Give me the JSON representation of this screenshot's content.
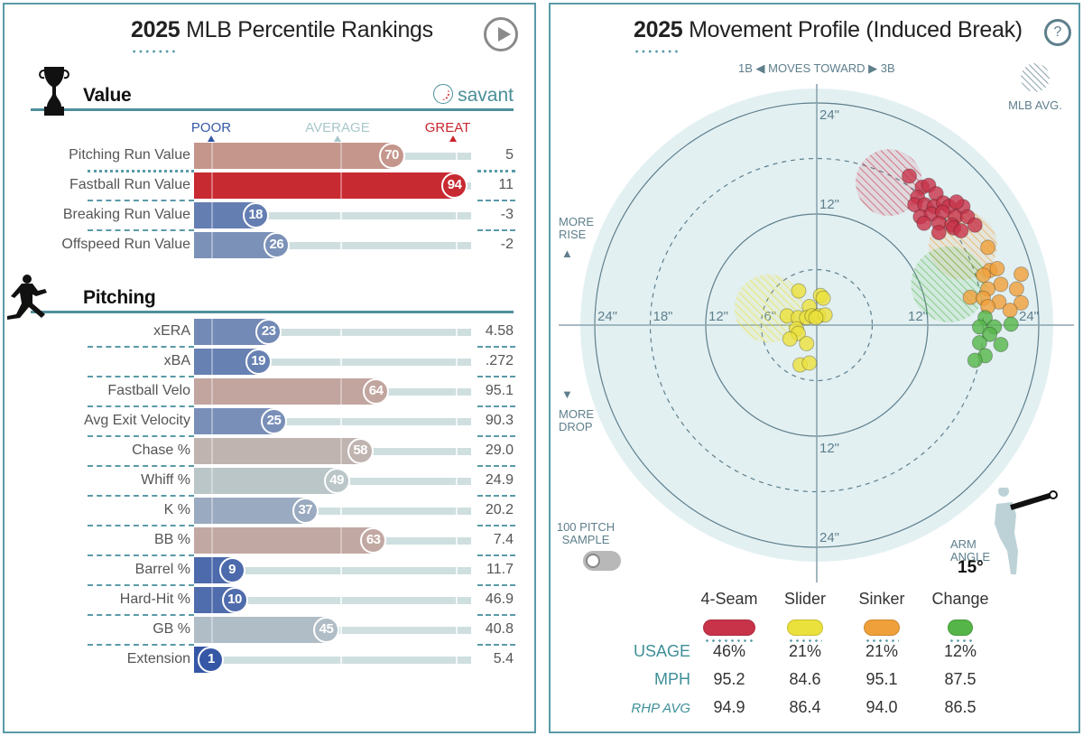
{
  "left": {
    "title_year": "2025",
    "title_rest": " MLB Percentile Rankings",
    "play_icon": "play-icon",
    "brand": "savant",
    "scale": {
      "poor": "POOR",
      "average": "AVERAGE",
      "great": "GREAT"
    },
    "sections": [
      {
        "label": "Value",
        "icon": "trophy-icon",
        "rows": [
          {
            "label": "Pitching Run Value",
            "percentile": 70,
            "value": "5"
          },
          {
            "label": "Fastball Run Value",
            "percentile": 94,
            "value": "11"
          },
          {
            "label": "Breaking Run Value",
            "percentile": 18,
            "value": "-3"
          },
          {
            "label": "Offspeed Run Value",
            "percentile": 26,
            "value": "-2"
          }
        ]
      },
      {
        "label": "Pitching",
        "icon": "pitcher-icon",
        "rows": [
          {
            "label": "xERA",
            "percentile": 23,
            "value": "4.58"
          },
          {
            "label": "xBA",
            "percentile": 19,
            "value": ".272"
          },
          {
            "label": "Fastball Velo",
            "percentile": 64,
            "value": "95.1"
          },
          {
            "label": "Avg Exit Velocity",
            "percentile": 25,
            "value": "90.3"
          },
          {
            "label": "Chase %",
            "percentile": 58,
            "value": "29.0"
          },
          {
            "label": "Whiff %",
            "percentile": 49,
            "value": "24.9"
          },
          {
            "label": "K %",
            "percentile": 37,
            "value": "20.2"
          },
          {
            "label": "BB %",
            "percentile": 63,
            "value": "7.4"
          },
          {
            "label": "Barrel %",
            "percentile": 9,
            "value": "11.7"
          },
          {
            "label": "Hard-Hit %",
            "percentile": 10,
            "value": "46.9"
          },
          {
            "label": "GB %",
            "percentile": 45,
            "value": "40.8"
          },
          {
            "label": "Extension",
            "percentile": 1,
            "value": "5.4"
          }
        ]
      }
    ]
  },
  "right": {
    "title_year": "2025",
    "title_rest": " Movement Profile (Induced Break)",
    "help_label": "?",
    "direction_left": "1B",
    "direction_mid": "MOVES TOWARD",
    "direction_right": "3B",
    "legend_mlb_avg": "MLB AVG.",
    "more_rise": "MORE RISE",
    "more_drop": "MORE DROP",
    "sample_label": "100 PITCH SAMPLE",
    "sample_toggle_on": false,
    "arm_angle_label": "ARM ANGLE",
    "arm_angle_value": "15°",
    "table": {
      "row_labels": {
        "usage": "USAGE",
        "mph": "MPH",
        "rhp_avg": "RHP AVG"
      }
    }
  },
  "chart_data": {
    "type": "scatter",
    "title": "2025 Movement Profile (Induced Break)",
    "xlabel": "Horizontal break (in): 1B ◀ moves toward ▶ 3B",
    "ylabel": "Induced vertical break (in): more rise ▲ / more drop ▼",
    "xlim": [
      -26,
      26
    ],
    "ylim": [
      -26,
      26
    ],
    "rings": [
      6,
      12,
      18,
      24
    ],
    "ring_labels": {
      "h_left": [
        "24\"",
        "18\"",
        "12\"",
        "6\""
      ],
      "h_right": [
        "12\"",
        "24\""
      ],
      "v_top": [
        "24\"",
        "12\""
      ],
      "v_bottom": [
        "12\"",
        "24\""
      ]
    },
    "series": [
      {
        "name": "4-Seam",
        "color": "#c8334a",
        "usage": "46%",
        "mph": "95.2",
        "rhp_avg": "94.9",
        "mlb_avg": {
          "x": 7.8,
          "y": 15.4,
          "r": 3.6
        },
        "points": [
          [
            10.0,
            16.1
          ],
          [
            11.4,
            14.9
          ],
          [
            12.1,
            15.1
          ],
          [
            12.9,
            14.2
          ],
          [
            10.9,
            13.8
          ],
          [
            10.6,
            13.0
          ],
          [
            11.7,
            13.0
          ],
          [
            12.7,
            12.8
          ],
          [
            13.7,
            13.2
          ],
          [
            14.3,
            12.8
          ],
          [
            15.8,
            12.8
          ],
          [
            15.1,
            13.3
          ],
          [
            11.2,
            11.7
          ],
          [
            12.4,
            12.0
          ],
          [
            13.6,
            12.2
          ],
          [
            15.0,
            11.7
          ],
          [
            16.3,
            11.7
          ],
          [
            11.6,
            11.0
          ],
          [
            13.2,
            11.0
          ],
          [
            14.6,
            10.8
          ],
          [
            13.2,
            10.0
          ],
          [
            14.8,
            10.5
          ],
          [
            17.1,
            10.8
          ],
          [
            15.6,
            10.2
          ]
        ]
      },
      {
        "name": "Slider",
        "color": "#ebe13c",
        "usage": "21%",
        "mph": "84.6",
        "rhp_avg": "86.4",
        "mlb_avg": {
          "x": -5.2,
          "y": 1.8,
          "r": 3.7
        },
        "points": [
          [
            -1.95,
            3.7
          ],
          [
            0.4,
            3.2
          ],
          [
            0.7,
            2.9
          ],
          [
            -0.8,
            2.0
          ],
          [
            -3.2,
            1.0
          ],
          [
            -2.0,
            0.8
          ],
          [
            -1.1,
            0.8
          ],
          [
            -0.5,
            1.0
          ],
          [
            0.2,
            1.0
          ],
          [
            0.9,
            1.1
          ],
          [
            -2.2,
            -0.4
          ],
          [
            -2.0,
            -0.9
          ],
          [
            -2.9,
            -1.5
          ],
          [
            -1.1,
            -2.0
          ],
          [
            -1.8,
            -4.3
          ],
          [
            -0.8,
            -4.1
          ],
          [
            -0.1,
            0.8
          ]
        ]
      },
      {
        "name": "Sinker",
        "color": "#f0a03a",
        "usage": "21%",
        "mph": "95.1",
        "rhp_avg": "94.0",
        "mlb_avg": {
          "x": 15.8,
          "y": 8.6,
          "r": 3.7
        },
        "points": [
          [
            18.5,
            8.4
          ],
          [
            18.7,
            5.9
          ],
          [
            19.5,
            6.1
          ],
          [
            18.0,
            5.4
          ],
          [
            22.1,
            5.5
          ],
          [
            19.9,
            4.4
          ],
          [
            18.5,
            3.9
          ],
          [
            21.6,
            3.9
          ],
          [
            16.6,
            3.0
          ],
          [
            18.0,
            2.9
          ],
          [
            19.7,
            2.5
          ],
          [
            22.1,
            2.4
          ],
          [
            18.5,
            2.0
          ],
          [
            20.9,
            1.6
          ]
        ]
      },
      {
        "name": "Change",
        "color": "#55b548",
        "usage": "12%",
        "mph": "87.5",
        "rhp_avg": "86.5",
        "mlb_avg": {
          "x": 14.3,
          "y": 4.4,
          "r": 4.1
        },
        "points": [
          [
            18.2,
            0.8
          ],
          [
            17.6,
            -0.2
          ],
          [
            19.2,
            -0.2
          ],
          [
            21.0,
            0.1
          ],
          [
            18.7,
            -1.0
          ],
          [
            17.6,
            -1.9
          ],
          [
            19.9,
            -2.1
          ],
          [
            18.2,
            -3.3
          ],
          [
            17.1,
            -3.8
          ]
        ]
      }
    ]
  }
}
